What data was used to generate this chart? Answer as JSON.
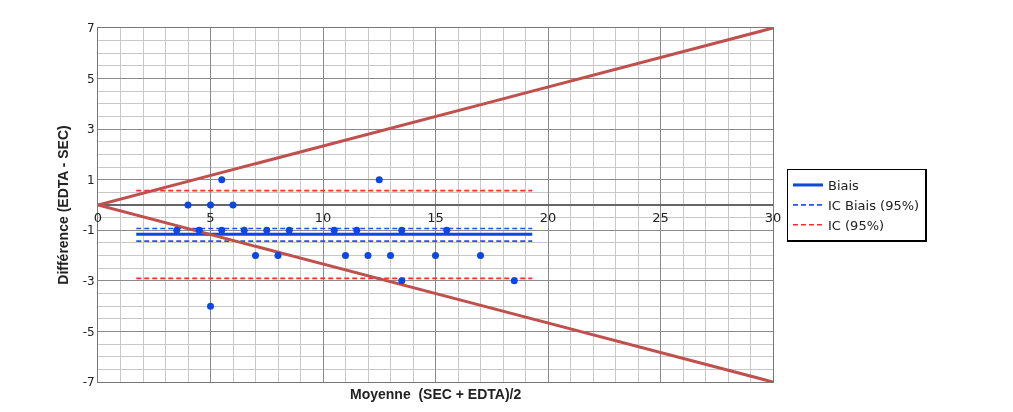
{
  "chart_data": {
    "type": "scatter",
    "xlabel": "Moyenne  (SEC + EDTA)/2",
    "ylabel": "Différence (EDTA - SEC)",
    "xlim": [
      0,
      30
    ],
    "xticks": [
      0,
      5,
      10,
      15,
      20,
      25,
      30
    ],
    "ylim": [
      -7,
      7
    ],
    "yticks": [
      -7,
      -5,
      -3,
      -1,
      1,
      3,
      5,
      7
    ],
    "grid": true,
    "legend": "right",
    "series": [
      {
        "color": "#0b46e6",
        "marker": "circle",
        "x": [
          5.5,
          12.5,
          4,
          5,
          6,
          3.5,
          4.5,
          5.5,
          6.5,
          7.5,
          8.5,
          10.5,
          11.5,
          13.5,
          15.5,
          7,
          8,
          11,
          12,
          13,
          15,
          17,
          13.5,
          18.5,
          5
        ],
        "values": [
          1,
          1,
          0,
          0,
          0,
          -1,
          -1,
          -1,
          -1,
          -1,
          -1,
          -1,
          -1,
          -1,
          -1,
          -2,
          -2,
          -2,
          -2,
          -2,
          -2,
          -2,
          -3,
          -3,
          -4
        ]
      },
      {
        "type": "line",
        "name": "Biais",
        "color": "#0b46e6",
        "line_style": "solid",
        "x": [
          1.7,
          19.3
        ],
        "values": [
          -1.16,
          -1.16
        ]
      },
      {
        "type": "line",
        "name": "IC Biais (95%)",
        "color": "#2255ee",
        "line_style": "dashed",
        "x": [
          1.7,
          19.3
        ],
        "values": [
          -0.93,
          -0.93
        ]
      },
      {
        "type": "line",
        "color": "#2255ee",
        "line_style": "dashed",
        "x": [
          1.7,
          19.3
        ],
        "values": [
          -1.43,
          -1.43
        ]
      },
      {
        "type": "line",
        "name": "IC (95%)",
        "color": "#ff2a2a",
        "line_style": "dashed",
        "x": [
          1.7,
          19.3
        ],
        "values": [
          0.57,
          0.57
        ]
      },
      {
        "type": "line",
        "color": "#ff2a2a",
        "line_style": "dashed",
        "x": [
          1.7,
          19.3
        ],
        "values": [
          -2.9,
          -2.9
        ]
      },
      {
        "type": "line",
        "color": "#c0504d",
        "line_style": "solid",
        "x": [
          0,
          30
        ],
        "values": [
          0,
          7
        ]
      },
      {
        "type": "line",
        "color": "#c0504d",
        "line_style": "solid",
        "x": [
          0,
          30
        ],
        "values": [
          0,
          -7
        ]
      }
    ]
  }
}
